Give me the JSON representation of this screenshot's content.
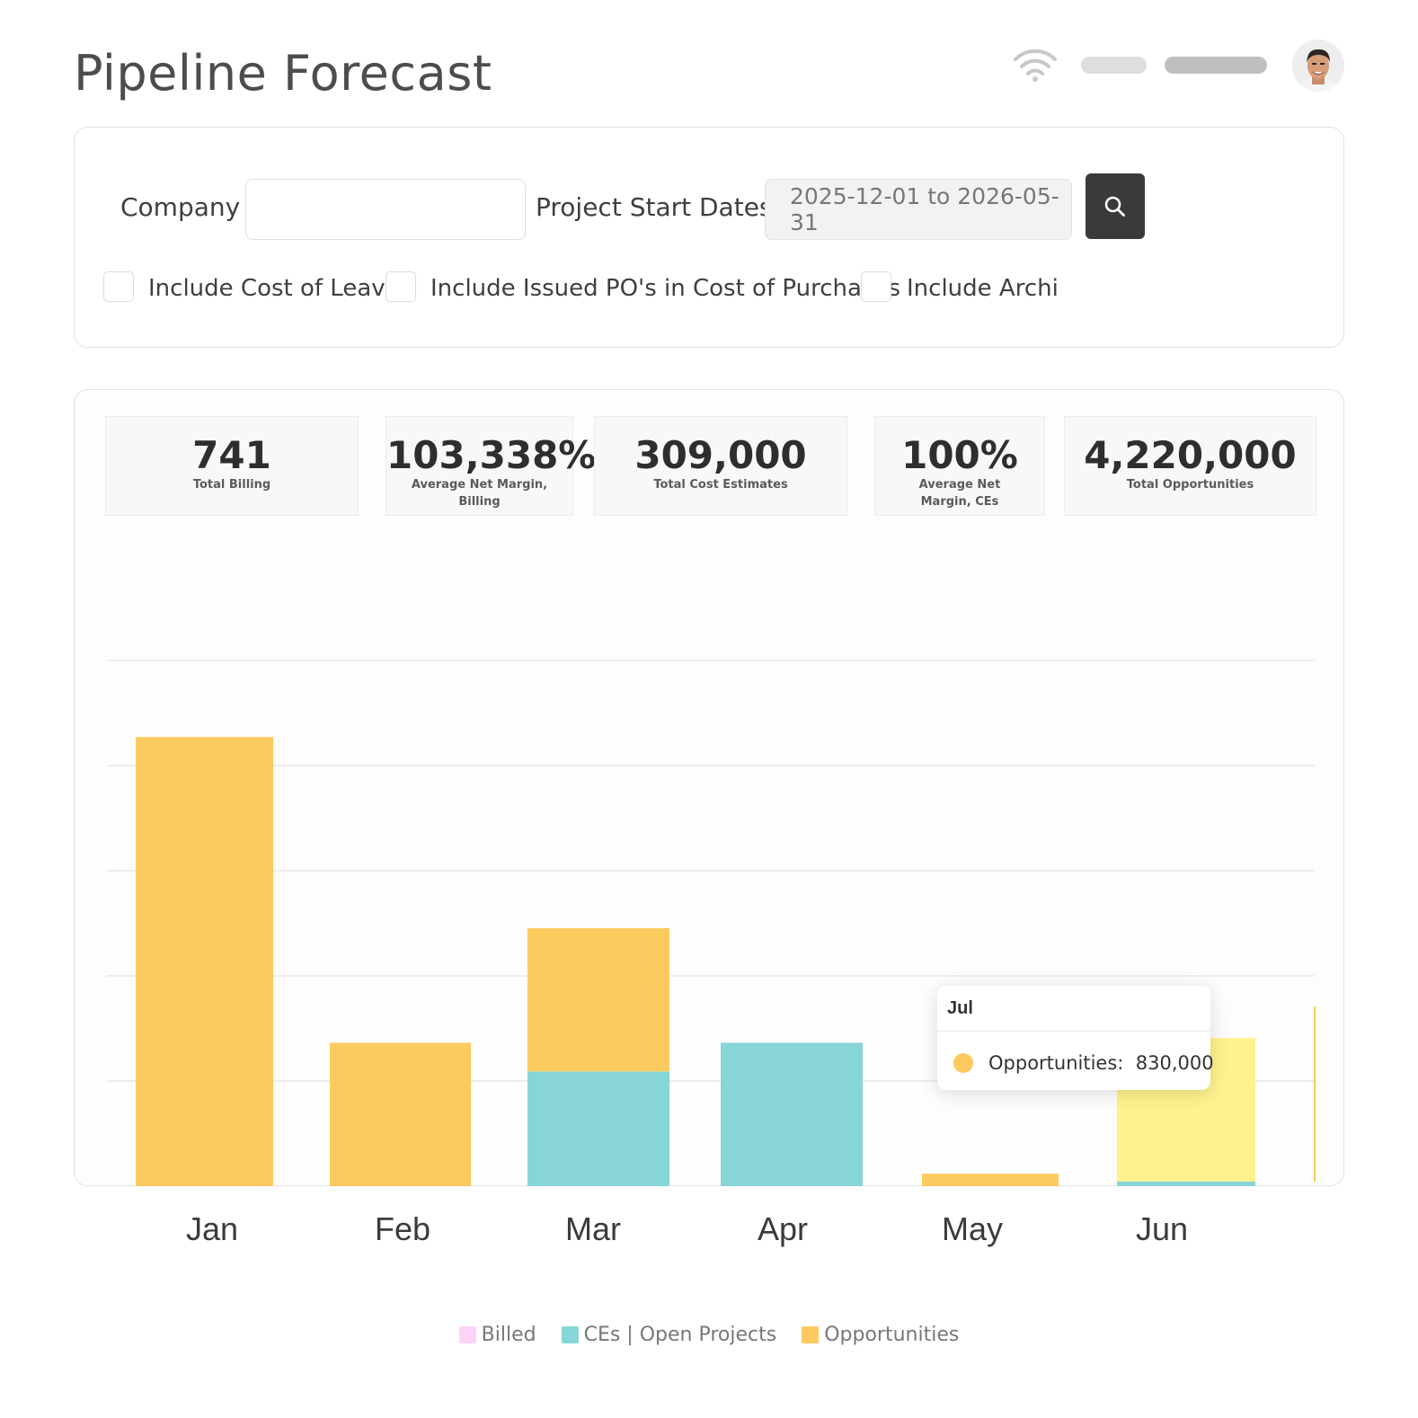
{
  "page_title": "Pipeline Forecast",
  "header": {
    "icons": [
      "wifi-icon",
      "avatar"
    ]
  },
  "filters": {
    "company_label": "Company",
    "company_value": "",
    "dates_label": "Project Start Dates",
    "dates_value": "2025-12-01 to 2026-05-31",
    "search_icon": "search-icon",
    "checkboxes": [
      {
        "label": "Include Cost of Leave",
        "checked": false
      },
      {
        "label": "Include Issued PO's in Cost of Purchases",
        "checked": false
      },
      {
        "label": "Include Archi",
        "checked": false
      }
    ]
  },
  "kpis": [
    {
      "value": "741",
      "label": "Total Billing"
    },
    {
      "value": "103,338%",
      "label": "Average Net Margin, Billing"
    },
    {
      "value": "309,000",
      "label": "Total Cost Estimates"
    },
    {
      "value": "100%",
      "label": "Average Net Margin, CEs"
    },
    {
      "value": "4,220,000",
      "label": "Total Opportunities"
    }
  ],
  "tooltip": {
    "title": "Jul",
    "series": "Opportunities:",
    "value": "830,000",
    "color": "#fdca5f"
  },
  "chart_data": {
    "type": "bar",
    "stacked": true,
    "categories": [
      "Jan",
      "Feb",
      "Mar",
      "Apr",
      "May",
      "Jun"
    ],
    "series": [
      {
        "name": "Billed",
        "color": "#ffd3f7",
        "values": [
          0,
          0,
          0,
          0,
          0,
          0
        ]
      },
      {
        "name": "CEs | Open Projects",
        "color": "#87d5d6",
        "values": [
          0,
          0,
          120000,
          150000,
          0,
          5000
        ]
      },
      {
        "name": "Opportunities",
        "color": "#fdca5f",
        "values": [
          470000,
          150000,
          150000,
          0,
          13000,
          150000
        ]
      }
    ],
    "highlight_color": "#fff28d",
    "ylim": [
      0,
      550000
    ],
    "grid": true,
    "legend_position": "bottom-center",
    "ylabel": "",
    "xlabel": ""
  }
}
